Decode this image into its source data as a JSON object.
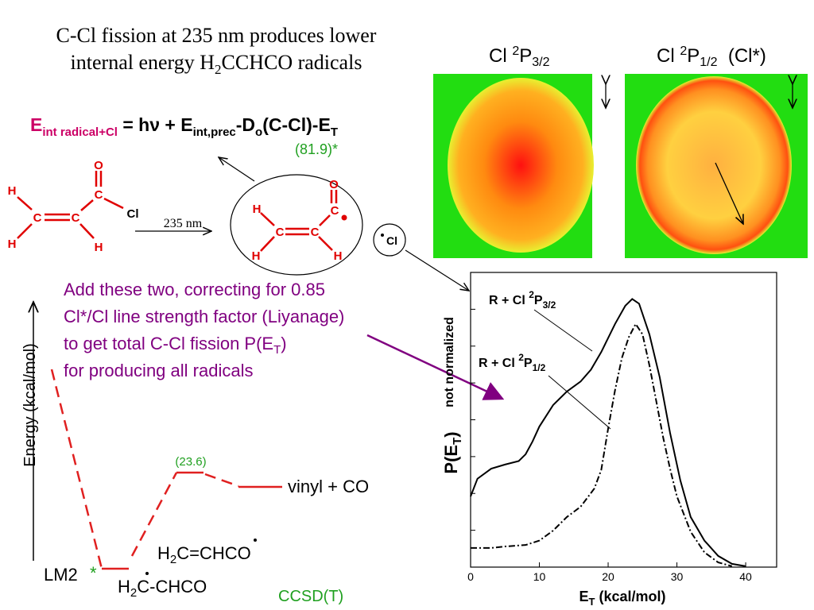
{
  "title": {
    "line1": "C-Cl fission at 235 nm produces lower",
    "line2": [
      "internal energy H",
      "2",
      "CCHCO radicals"
    ]
  },
  "equation": {
    "parts": [
      "E",
      "int radical+Cl",
      " = hν + E",
      "int,prec",
      "-D",
      "o",
      "(C-Cl)-E",
      "T"
    ],
    "note": "(81.9)*"
  },
  "reactant": {
    "atoms": [
      "H",
      "C",
      "C",
      "C",
      "O",
      "Cl",
      "H",
      "H"
    ]
  },
  "arrow_label": "235 nm",
  "radical": {
    "atoms": [
      "H",
      "C",
      "C",
      "C",
      "O",
      "H",
      "H"
    ],
    "chlorine": "Cl"
  },
  "images": [
    {
      "label": [
        "Cl ",
        "2",
        "P",
        "3/2"
      ]
    },
    {
      "label": [
        "Cl ",
        "2",
        "P",
        "1/2",
        "  (Cl*)"
      ]
    }
  ],
  "note": {
    "line1": "Add these two, correcting for 0.85",
    "line2": "Cl*/Cl line strength factor (Liyanage)",
    "line3": [
      "to get total C-Cl fission P(E",
      "T",
      ")"
    ],
    "line4": "for producing all radicals"
  },
  "energy_diagram": {
    "axis_label": "Energy (kcal/mol)",
    "barrier": "(23.6)",
    "products": "vinyl + CO",
    "species1": [
      "H",
      "2",
      "C=CH",
      "C",
      "O"
    ],
    "minimum": "LM2",
    "star": "*",
    "species2": [
      "H",
      "2",
      "C",
      "-CHCO"
    ],
    "method": "CCSD(T)"
  },
  "chart_data": {
    "type": "line",
    "xlabel": [
      "E",
      "T",
      " (kcal/mol)"
    ],
    "ylabel": [
      "P(E",
      "T",
      ")"
    ],
    "ylabel_note": "not normalized",
    "xlim": [
      0,
      44.5
    ],
    "xticks": [
      0,
      10,
      20,
      30,
      40
    ],
    "ylim": [
      0,
      1
    ],
    "yticks": [
      0.125,
      0.25,
      0.375,
      0.5,
      0.625,
      0.75,
      0.875
    ],
    "series": [
      {
        "label": [
          "R + Cl ",
          "2",
          "P",
          "3/2"
        ],
        "color": "#000000",
        "style": "solid",
        "x": [
          0,
          1,
          3,
          5,
          7,
          8,
          9,
          10,
          12,
          14,
          16,
          17.5,
          19,
          21,
          22.5,
          23.5,
          24.5,
          26,
          27.5,
          29,
          30.5,
          32,
          34,
          36,
          38,
          40
        ],
        "values": [
          0.24,
          0.3,
          0.334,
          0.348,
          0.36,
          0.383,
          0.426,
          0.477,
          0.55,
          0.596,
          0.63,
          0.67,
          0.73,
          0.825,
          0.887,
          0.91,
          0.894,
          0.79,
          0.644,
          0.456,
          0.294,
          0.17,
          0.09,
          0.038,
          0.011,
          0.003
        ]
      },
      {
        "label": [
          "R + Cl ",
          "2",
          "P",
          "1/2"
        ],
        "color": "#000000",
        "style": "dashdot",
        "x": [
          0,
          3,
          5,
          8,
          10,
          12,
          14,
          16,
          18,
          19,
          20,
          21,
          22,
          23,
          24,
          25,
          26,
          27,
          28,
          29,
          30,
          32,
          34,
          36,
          38
        ],
        "values": [
          0.065,
          0.065,
          0.07,
          0.075,
          0.09,
          0.124,
          0.17,
          0.205,
          0.267,
          0.33,
          0.47,
          0.6,
          0.71,
          0.78,
          0.825,
          0.79,
          0.685,
          0.563,
          0.44,
          0.334,
          0.24,
          0.12,
          0.05,
          0.016,
          0.003
        ]
      }
    ]
  }
}
